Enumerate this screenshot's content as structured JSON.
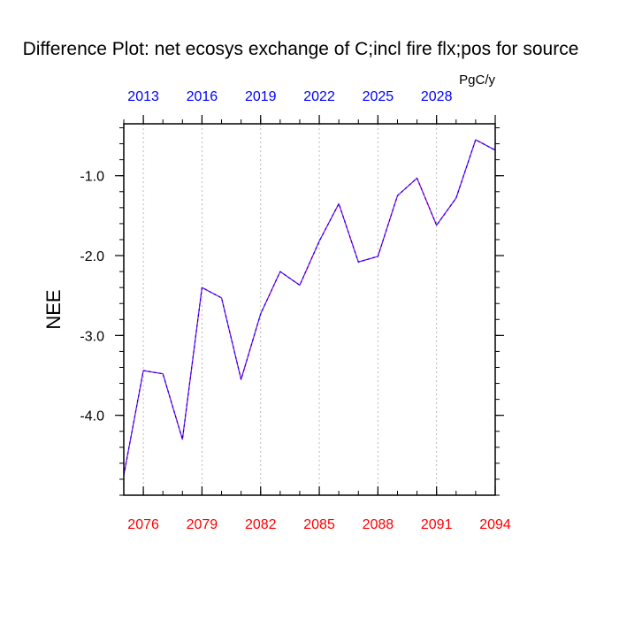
{
  "chart_data": {
    "type": "line",
    "title": "Difference Plot: net ecosys exchange of C;incl fire flx;pos for source",
    "units": "PgC/y",
    "ylabel": "NEE",
    "xlabel": "",
    "x": [
      2075,
      2076,
      2077,
      2078,
      2079,
      2080,
      2081,
      2082,
      2083,
      2084,
      2085,
      2086,
      2087,
      2088,
      2089,
      2090,
      2091,
      2092,
      2093,
      2094
    ],
    "series": [
      {
        "values": [
          -4.75,
          -3.44,
          -3.48,
          -4.3,
          -2.4,
          -2.53,
          -3.55,
          -2.73,
          -2.2,
          -2.37,
          -1.82,
          -1.35,
          -2.08,
          -2.01,
          -1.25,
          -1.03,
          -1.62,
          -1.28,
          -0.55,
          -0.68
        ],
        "color": "#9900cc",
        "dash_color": "#0000ff"
      }
    ],
    "xlim": [
      2075,
      2094
    ],
    "ylim": [
      -5.0,
      -0.35
    ],
    "x_ticks_bottom": [
      "2076",
      "2079",
      "2082",
      "2085",
      "2088",
      "2091",
      "2094"
    ],
    "x_ticks_top": [
      "2013",
      "2016",
      "2019",
      "2022",
      "2025",
      "2028"
    ],
    "top_axis_offset_years": -63,
    "y_ticks": [
      "-4.0",
      "-3.0",
      "-2.0",
      "-1.0"
    ],
    "y_tick_values": [
      -4.0,
      -3.0,
      -2.0,
      -1.0
    ],
    "x_grid": true,
    "y_grid": false,
    "colors": {
      "bottom_ticks": "#ff0000",
      "top_ticks": "#0000ff",
      "grid": "#aaaaaa"
    }
  }
}
